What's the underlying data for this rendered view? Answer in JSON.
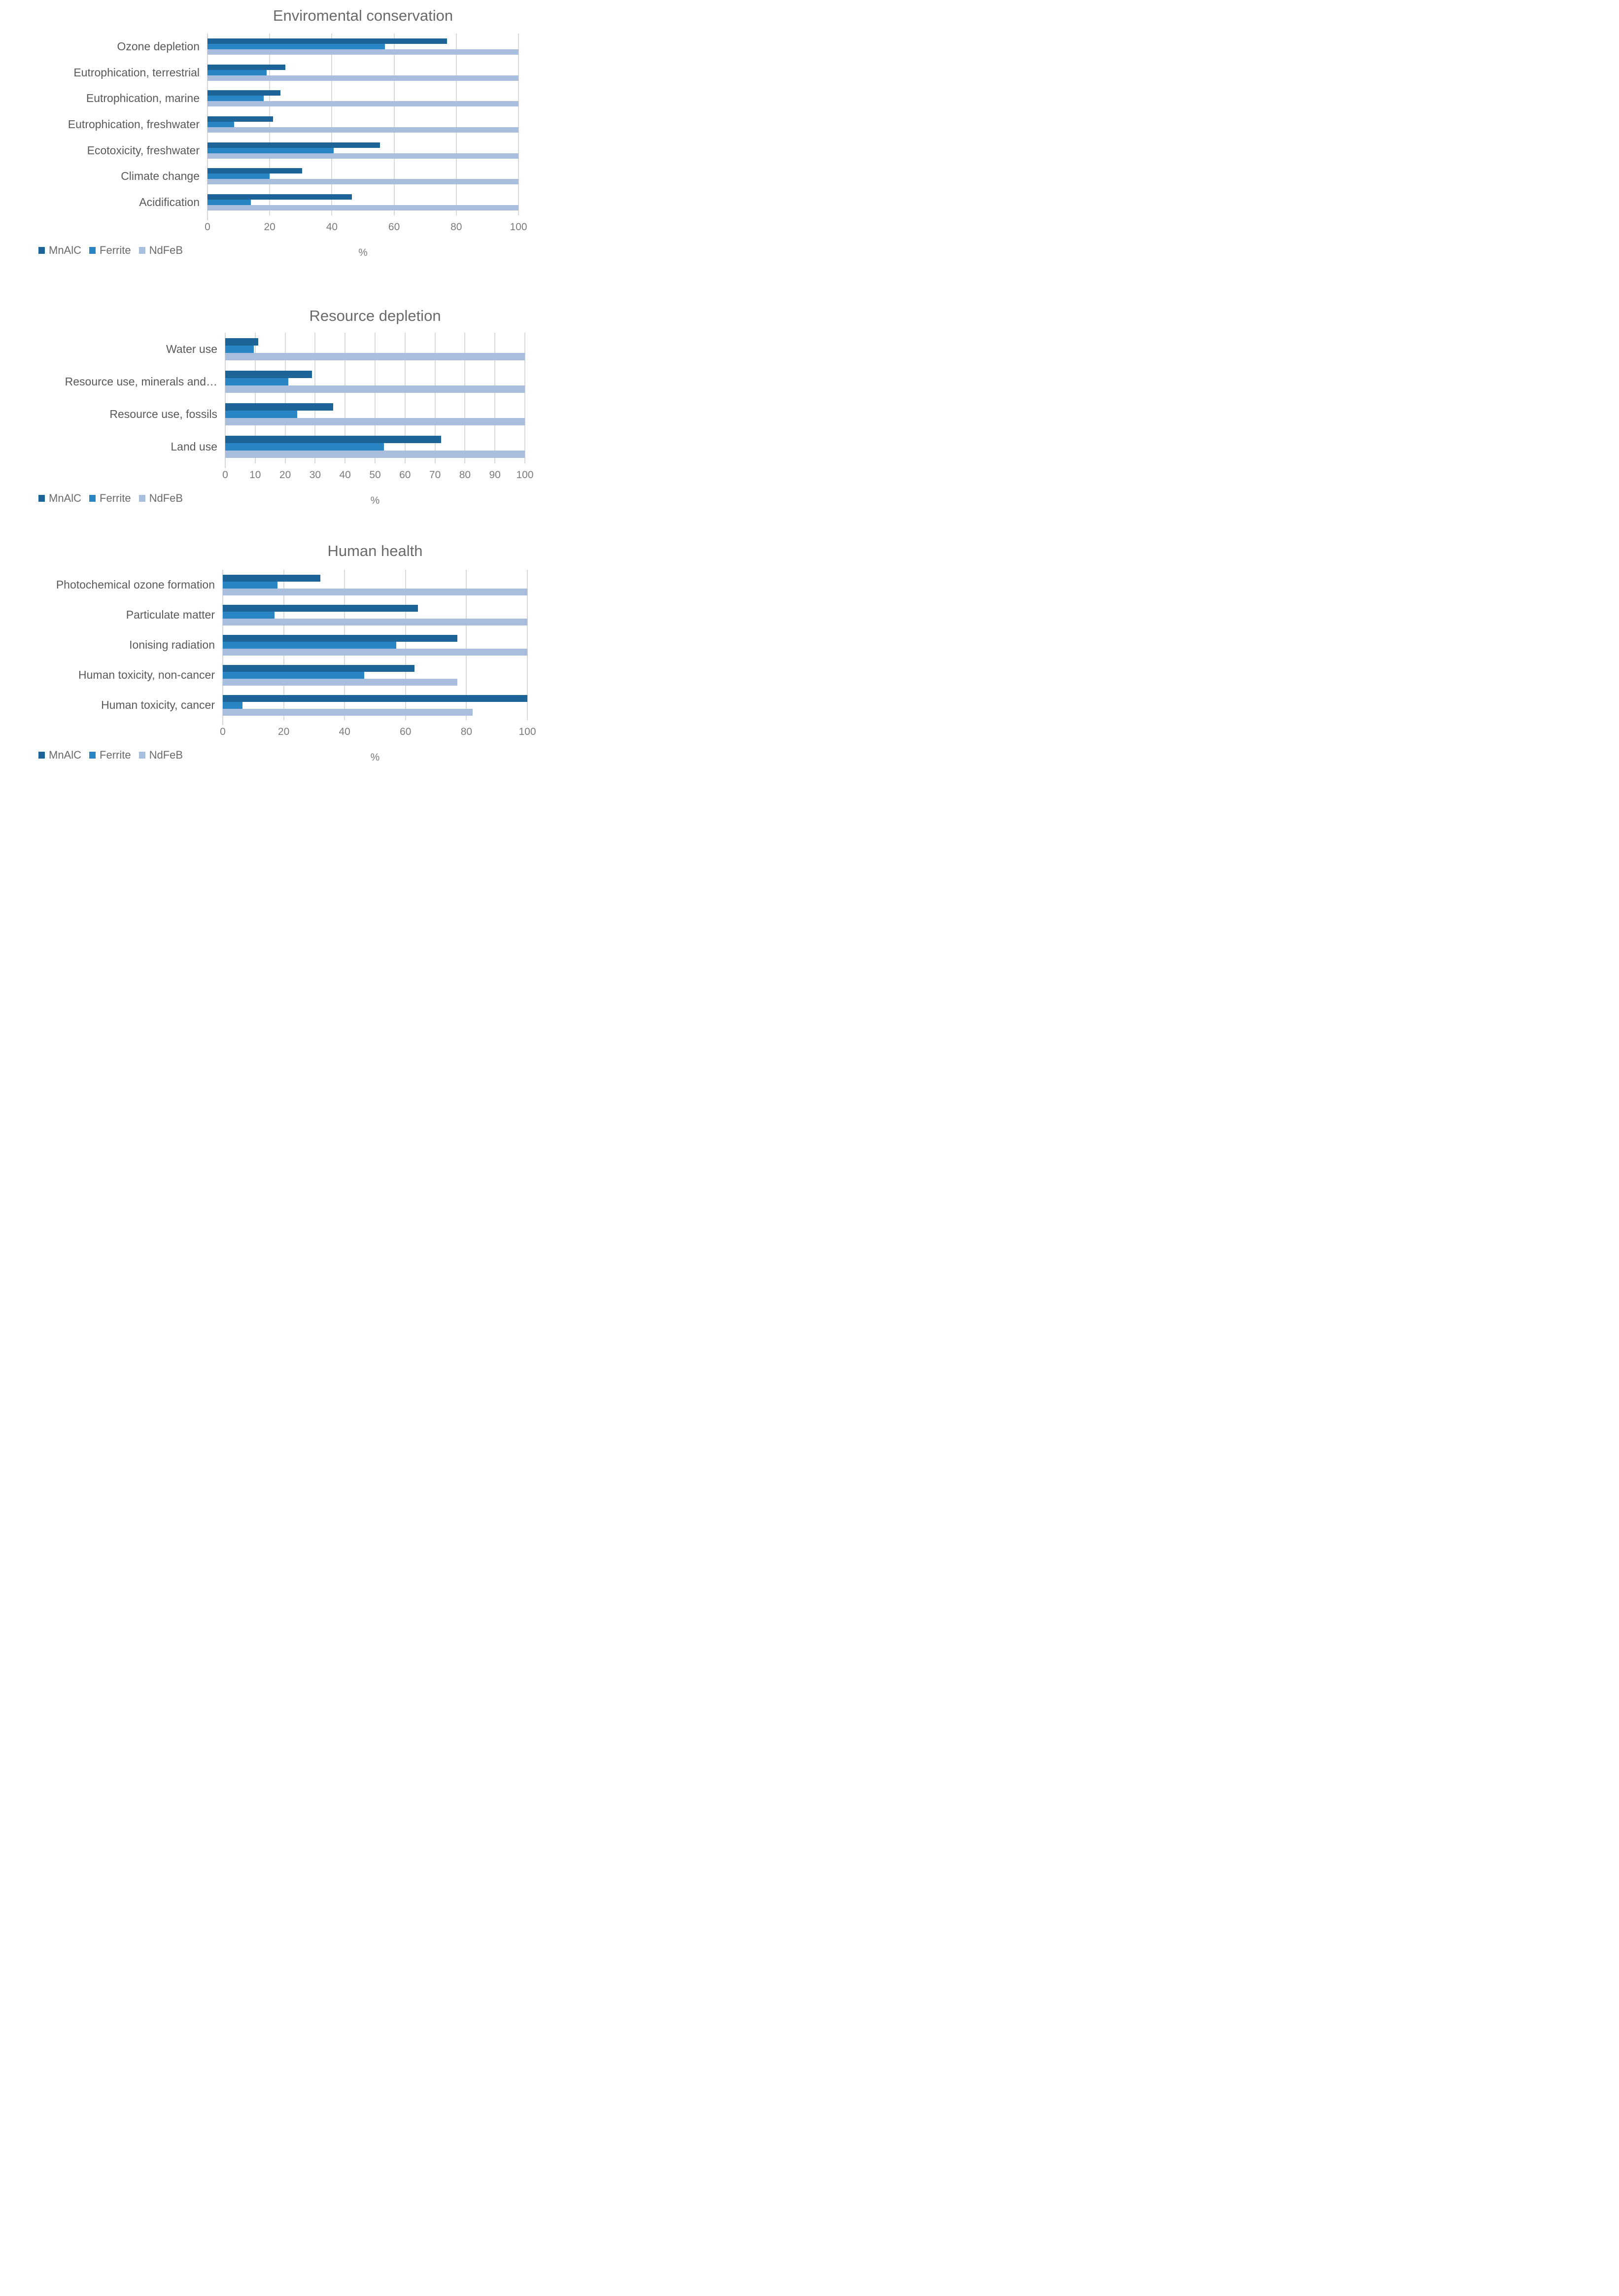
{
  "series_colors": {
    "MnAlC": "#1D6499",
    "Ferrite": "#2985C4",
    "NdFeB": "#A9BDDC"
  },
  "grid_color": "#D9D9D9",
  "text_color": "#595959",
  "chart_data": [
    {
      "type": "bar",
      "orientation": "horizontal",
      "title": "Enviromental conservation",
      "xlabel": "%",
      "xlim": [
        0,
        100
      ],
      "grid": true,
      "legend_position": "bottom-left",
      "legend": [
        "MnAlC",
        "Ferrite",
        "NdFeB"
      ],
      "tick_labels": [
        "0",
        "20",
        "40",
        "60",
        "80",
        "100"
      ],
      "categories": [
        "Ozone depletion",
        "Eutrophication, terrestrial",
        "Eutrophication, marine",
        "Eutrophication, freshwater",
        "Ecotoxicity, freshwater",
        "Climate change",
        "Acidification"
      ],
      "series": [
        {
          "name": "MnAlC",
          "values": [
            77,
            25,
            23.5,
            21,
            55.5,
            30.5,
            46.5
          ]
        },
        {
          "name": "Ferrite",
          "values": [
            57,
            19,
            18,
            8.5,
            40.5,
            20,
            14
          ]
        },
        {
          "name": "NdFeB",
          "values": [
            100,
            100,
            100,
            100,
            100,
            100,
            100
          ]
        }
      ]
    },
    {
      "type": "bar",
      "orientation": "horizontal",
      "title": "Resource depletion",
      "xlabel": "%",
      "xlim": [
        0,
        100
      ],
      "grid": true,
      "legend_position": "bottom-left",
      "legend": [
        "MnAlC",
        "Ferrite",
        "NdFeB"
      ],
      "tick_labels": [
        "0",
        "10",
        "20",
        "30",
        "40",
        "50",
        "60",
        "70",
        "80",
        "90",
        "100"
      ],
      "categories": [
        "Water use",
        "Resource use, minerals and…",
        "Resource use, fossils",
        "Land use"
      ],
      "series": [
        {
          "name": "MnAlC",
          "values": [
            11,
            29,
            36,
            72
          ]
        },
        {
          "name": "Ferrite",
          "values": [
            9.5,
            21,
            24,
            53
          ]
        },
        {
          "name": "NdFeB",
          "values": [
            100,
            100,
            100,
            100
          ]
        }
      ]
    },
    {
      "type": "bar",
      "orientation": "horizontal",
      "title": "Human health",
      "xlabel": "%",
      "xlim": [
        0,
        100
      ],
      "grid": true,
      "legend_position": "bottom-left",
      "legend": [
        "MnAlC",
        "Ferrite",
        "NdFeB"
      ],
      "tick_labels": [
        "0",
        "20",
        "40",
        "60",
        "80",
        "100"
      ],
      "categories": [
        "Photochemical ozone formation",
        "Particulate matter",
        "Ionising radiation",
        "Human toxicity, non-cancer",
        "Human toxicity, cancer"
      ],
      "series": [
        {
          "name": "MnAlC",
          "values": [
            32,
            64,
            77,
            63,
            100
          ]
        },
        {
          "name": "Ferrite",
          "values": [
            18,
            17,
            57,
            46.5,
            6.5
          ]
        },
        {
          "name": "NdFeB",
          "values": [
            100,
            100,
            100,
            77,
            82
          ]
        }
      ]
    }
  ]
}
